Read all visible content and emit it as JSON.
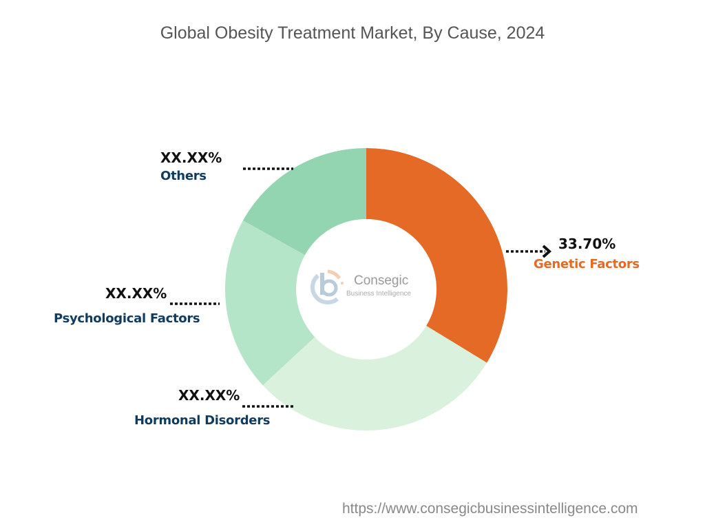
{
  "chart_data": {
    "type": "pie",
    "donut": true,
    "title": "Global Obesity Treatment Market, By Cause, 2024",
    "slices": [
      {
        "name": "Genetic Factors",
        "label": "33.70%",
        "value": 33.7,
        "color": "#E46A25",
        "name_color": "#E46A25"
      },
      {
        "name": "Hormonal Disorders",
        "label": "XX.XX%",
        "value": 29.4,
        "color": "#DAF2DD",
        "name_color": "#0F3B5F"
      },
      {
        "name": "Psychological Factors",
        "label": "XX.XX%",
        "value": 20.0,
        "color": "#B5E5C8",
        "name_color": "#0F3B5F"
      },
      {
        "name": "Others",
        "label": "XX.XX%",
        "value": 16.9,
        "color": "#93D5B0",
        "name_color": "#0F3B5F"
      }
    ],
    "start_angle": "top",
    "direction": "clockwise"
  },
  "watermark": {
    "name": "Consegic",
    "tagline": "Business Intelligence"
  },
  "footer_url": "https://www.consegicbusinessintelligence.com"
}
